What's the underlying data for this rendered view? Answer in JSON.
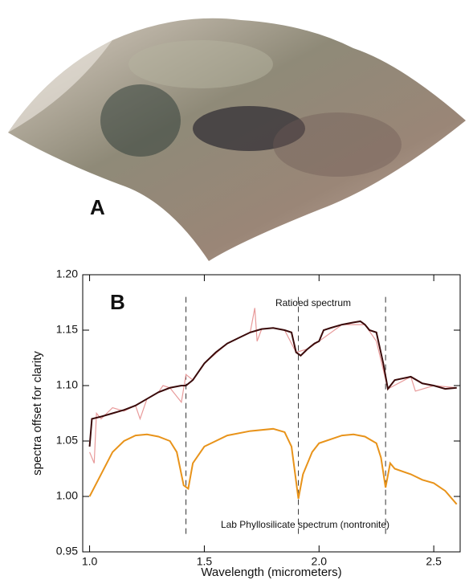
{
  "panels": {
    "a": "A",
    "b": "B"
  },
  "chart_data": {
    "type": "line",
    "xlabel": "Wavelength (micrometers)",
    "ylabel": "spectra offset for clarity",
    "xlim": [
      0.97,
      2.615
    ],
    "ylim": [
      0.95,
      1.2
    ],
    "xticks": [
      {
        "value": 1,
        "label": "1.0"
      },
      1.5,
      {
        "value": 2,
        "label": "2.0"
      },
      2.5
    ],
    "yticks": [
      0.95,
      {
        "value": 1,
        "label": "1.00"
      },
      1.05,
      {
        "value": 1.1,
        "label": "1.10"
      },
      1.15,
      {
        "value": 1.2,
        "label": "1.20"
      }
    ],
    "vlines": [
      1.42,
      1.91,
      2.29
    ],
    "series": [
      {
        "color": "#e89a9a",
        "x": [
          1.0,
          1.02,
          1.03,
          1.05,
          1.1,
          1.15,
          1.2,
          1.22,
          1.25,
          1.3,
          1.32,
          1.35,
          1.4,
          1.42,
          1.45,
          1.5,
          1.6,
          1.7,
          1.72,
          1.73,
          1.75,
          1.8,
          1.85,
          1.9,
          1.95,
          2.0,
          2.1,
          2.2,
          2.25,
          2.3,
          2.4,
          2.42,
          2.5,
          2.6
        ],
        "values": [
          1.04,
          1.03,
          1.075,
          1.07,
          1.08,
          1.077,
          1.082,
          1.07,
          1.088,
          1.094,
          1.1,
          1.098,
          1.085,
          1.11,
          1.105,
          1.12,
          1.138,
          1.148,
          1.17,
          1.14,
          1.151,
          1.152,
          1.15,
          1.13,
          1.133,
          1.14,
          1.155,
          1.155,
          1.14,
          1.097,
          1.108,
          1.095,
          1.1,
          1.098
        ]
      },
      {
        "name": "Ratioed spectrum",
        "color": "#3a0a0a",
        "x": [
          1.0,
          1.01,
          1.05,
          1.1,
          1.15,
          1.2,
          1.25,
          1.3,
          1.35,
          1.4,
          1.42,
          1.45,
          1.5,
          1.55,
          1.6,
          1.65,
          1.7,
          1.75,
          1.8,
          1.85,
          1.88,
          1.9,
          1.92,
          1.95,
          1.98,
          2.0,
          2.02,
          2.05,
          2.1,
          2.15,
          2.18,
          2.2,
          2.22,
          2.25,
          2.28,
          2.3,
          2.33,
          2.4,
          2.45,
          2.5,
          2.55,
          2.6
        ],
        "values": [
          1.045,
          1.07,
          1.072,
          1.075,
          1.078,
          1.082,
          1.088,
          1.094,
          1.098,
          1.1,
          1.1,
          1.105,
          1.12,
          1.13,
          1.138,
          1.143,
          1.148,
          1.151,
          1.152,
          1.15,
          1.148,
          1.13,
          1.127,
          1.133,
          1.138,
          1.14,
          1.15,
          1.152,
          1.155,
          1.157,
          1.158,
          1.155,
          1.15,
          1.148,
          1.12,
          1.097,
          1.105,
          1.108,
          1.102,
          1.1,
          1.097,
          1.098
        ]
      },
      {
        "name": "Lab Phyllosilicate spectrum (nontronite)",
        "color": "#e8931a",
        "x": [
          1.0,
          1.05,
          1.1,
          1.15,
          1.2,
          1.25,
          1.3,
          1.35,
          1.38,
          1.41,
          1.43,
          1.45,
          1.5,
          1.6,
          1.7,
          1.8,
          1.85,
          1.88,
          1.91,
          1.93,
          1.97,
          2.0,
          2.1,
          2.15,
          2.2,
          2.25,
          2.27,
          2.29,
          2.31,
          2.33,
          2.4,
          2.45,
          2.5,
          2.55,
          2.6
        ],
        "values": [
          1.0,
          1.02,
          1.04,
          1.05,
          1.055,
          1.056,
          1.054,
          1.05,
          1.04,
          1.01,
          1.007,
          1.03,
          1.045,
          1.055,
          1.059,
          1.061,
          1.058,
          1.045,
          0.998,
          1.02,
          1.04,
          1.048,
          1.055,
          1.056,
          1.054,
          1.048,
          1.035,
          1.008,
          1.03,
          1.025,
          1.02,
          1.015,
          1.012,
          1.005,
          0.993
        ]
      }
    ]
  }
}
